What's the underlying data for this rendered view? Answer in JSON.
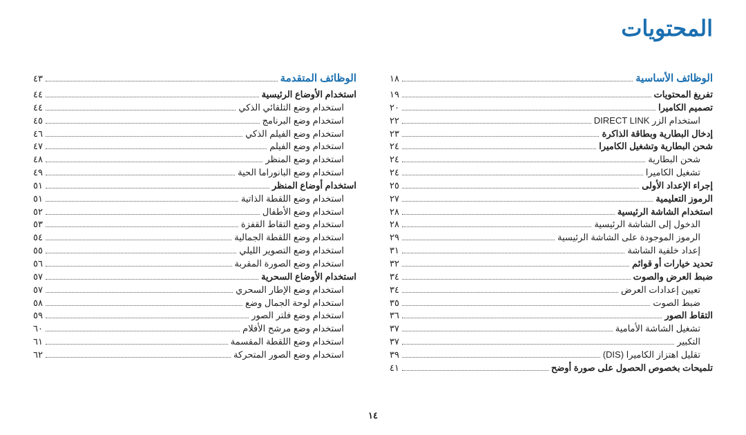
{
  "pageTitle": "المحتويات",
  "pageNumber": "١٤",
  "columns": [
    {
      "sections": [
        {
          "title": "الوظائف الأساسية",
          "page": "١٨",
          "entries": [
            {
              "label": "تفريغ المحتويات",
              "page": "١٩",
              "bold": true
            },
            {
              "label": "تصميم الكاميرا",
              "page": "٢٠",
              "bold": true
            },
            {
              "label": "استخدام الزر DIRECT LINK",
              "page": "٢٢",
              "sub": true
            },
            {
              "label": "إدخال البطارية وبطاقة الذاكرة",
              "page": "٢٣",
              "bold": true
            },
            {
              "label": "شحن البطارية وتشغيل الكاميرا",
              "page": "٢٤",
              "bold": true
            },
            {
              "label": "شحن البطارية",
              "page": "٢٤",
              "sub": true
            },
            {
              "label": "تشغيل الكاميرا",
              "page": "٢٤",
              "sub": true
            },
            {
              "label": "إجراء الإعداد الأولى",
              "page": "٢٥",
              "bold": true
            },
            {
              "label": "الرموز التعليمية",
              "page": "٢٧",
              "bold": true
            },
            {
              "label": "استخدام الشاشة الرئيسية",
              "page": "٢٨",
              "bold": true
            },
            {
              "label": "الدخول إلى الشاشة الرئيسية",
              "page": "٢٨",
              "sub": true
            },
            {
              "label": "الرموز الموجودة على الشاشة الرئيسية",
              "page": "٢٩",
              "sub": true
            },
            {
              "label": "إعداد خلفية الشاشة",
              "page": "٣١",
              "sub": true
            },
            {
              "label": "تحديد خيارات أو قوائم",
              "page": "٣٢",
              "bold": true
            },
            {
              "label": "ضبط العرض والصوت",
              "page": "٣٤",
              "bold": true
            },
            {
              "label": "تعيين إعدادات العرض",
              "page": "٣٤",
              "sub": true
            },
            {
              "label": "ضبط الصوت",
              "page": "٣٥",
              "sub": true
            },
            {
              "label": "التقاط الصور",
              "page": "٣٦",
              "bold": true
            },
            {
              "label": "تشغيل الشاشة الأمامية",
              "page": "٣٧",
              "sub": true
            },
            {
              "label": "التكبير",
              "page": "٣٧",
              "sub": true
            },
            {
              "label": "تقليل اهتزاز الكاميرا (DIS)",
              "page": "٣٩",
              "sub": true
            },
            {
              "label": "تلميحات بخصوص الحصول على صورة أوضح",
              "page": "٤١",
              "bold": true
            }
          ]
        }
      ]
    },
    {
      "sections": [
        {
          "title": "الوظائف المتقدمة",
          "page": "٤٣",
          "entries": [
            {
              "label": "استخدام الأوضاع الرئيسية",
              "page": "٤٤",
              "bold": true
            },
            {
              "label": "استخدام وضع التلقائي الذكي",
              "page": "٤٤",
              "sub": true
            },
            {
              "label": "استخدام وضع البرنامج",
              "page": "٤٥",
              "sub": true
            },
            {
              "label": "استخدام وضع الفيلم الذكي",
              "page": "٤٦",
              "sub": true
            },
            {
              "label": "استخدام وضع الفيلم",
              "page": "٤٧",
              "sub": true
            },
            {
              "label": "استخدام وضع المنظر",
              "page": "٤٨",
              "sub": true
            },
            {
              "label": "استخدام وضع البانوراما الحية",
              "page": "٤٩",
              "sub": true
            },
            {
              "label": "استخدام أوضاع المنظر",
              "page": "٥١",
              "bold": true
            },
            {
              "label": "استخدام وضع اللقطة الذاتية",
              "page": "٥١",
              "sub": true
            },
            {
              "label": "استخدام وضع الأطفال",
              "page": "٥٢",
              "sub": true
            },
            {
              "label": "استخدام وضع التقاط القفزة",
              "page": "٥٣",
              "sub": true
            },
            {
              "label": "استخدام وضع اللقطة الجمالية",
              "page": "٥٤",
              "sub": true
            },
            {
              "label": "استخدام وضع التصوير الليلي",
              "page": "٥٥",
              "sub": true
            },
            {
              "label": "استخدام وضع الصورة المقربة",
              "page": "٥٦",
              "sub": true
            },
            {
              "label": "استخدام الأوضاع السحرية",
              "page": "٥٧",
              "bold": true
            },
            {
              "label": "استخدام وضع الإطار السحري",
              "page": "٥٧",
              "sub": true
            },
            {
              "label": "استخدام لوحة الجمال وضع",
              "page": "٥٨",
              "sub": true
            },
            {
              "label": "استخدام وضع فلتر الصور",
              "page": "٥٩",
              "sub": true
            },
            {
              "label": "استخدام وضع مرشح الأفلام",
              "page": "٦٠",
              "sub": true
            },
            {
              "label": "استخدام وضع اللقطة المقسمة",
              "page": "٦١",
              "sub": true
            },
            {
              "label": "استخدام وضع الصور المتحركة",
              "page": "٦٢",
              "sub": true
            }
          ]
        }
      ]
    }
  ]
}
